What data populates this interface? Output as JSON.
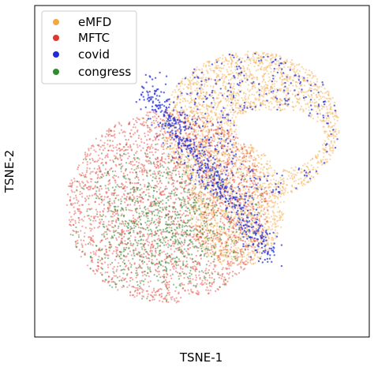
{
  "chart_data": {
    "type": "scatter",
    "title": "",
    "xlabel": "TSNE-1",
    "ylabel": "TSNE-2",
    "grid": false,
    "tick_labels": false,
    "legend_position": "top-left",
    "series": [
      {
        "name": "eMFD",
        "color": "#f4a742"
      },
      {
        "name": "MFTC",
        "color": "#e0372c"
      },
      {
        "name": "covid",
        "color": "#1f2bd8"
      },
      {
        "name": "congress",
        "color": "#2e8b2e"
      }
    ]
  }
}
